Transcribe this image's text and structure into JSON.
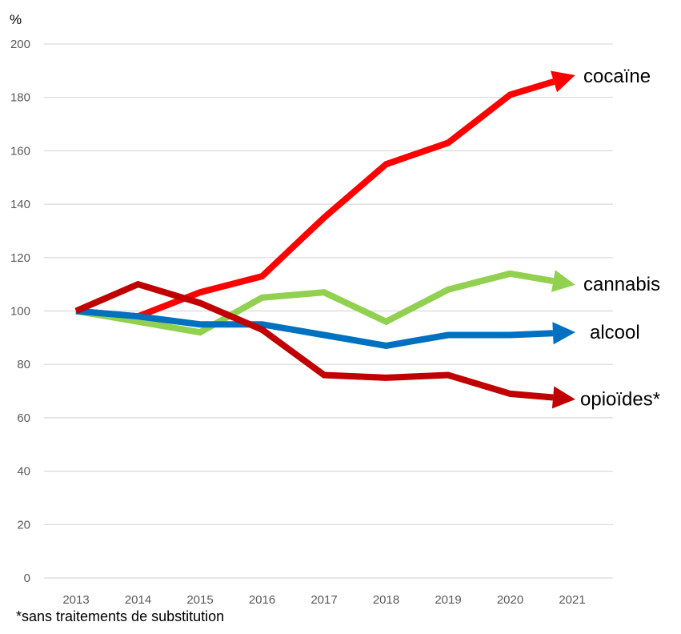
{
  "chart_data": {
    "type": "line",
    "y_unit": "%",
    "x": [
      "2013",
      "2014",
      "2015",
      "2016",
      "2017",
      "2018",
      "2019",
      "2020",
      "2021"
    ],
    "ylim": [
      0,
      200
    ],
    "y_ticks": [
      "0",
      "20",
      "40",
      "60",
      "80",
      "100",
      "120",
      "140",
      "160",
      "180",
      "200"
    ],
    "grid": "horizontal",
    "series": [
      {
        "name": "cocaïne",
        "color": "#FF0000",
        "values": [
          100,
          98,
          107,
          113,
          135,
          155,
          163,
          181,
          188
        ]
      },
      {
        "name": "cannabis",
        "color": "#92D050",
        "values": [
          100,
          96,
          92,
          105,
          107,
          96,
          108,
          114,
          110
        ]
      },
      {
        "name": "alcool",
        "color": "#0070C0",
        "values": [
          100,
          98,
          95,
          95,
          91,
          87,
          91,
          91,
          92
        ]
      },
      {
        "name": "opioïdes*",
        "color": "#C00000",
        "values": [
          100,
          110,
          103,
          93,
          76,
          75,
          76,
          69,
          67
        ]
      }
    ],
    "footnote": "*sans traitements de substitution"
  }
}
